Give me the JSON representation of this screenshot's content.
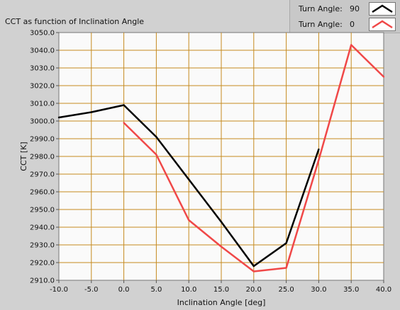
{
  "chart_data": {
    "type": "line",
    "title": "CCT as function of Inclination Angle",
    "xlabel": "Inclination Angle [deg]",
    "ylabel": "CCT [K]",
    "xlim": [
      -10,
      40
    ],
    "ylim": [
      2910,
      3050
    ],
    "xticks": [
      "-10.0",
      "-5.0",
      "0.0",
      "5.0",
      "10.0",
      "15.0",
      "20.0",
      "25.0",
      "30.0",
      "35.0",
      "40.0"
    ],
    "yticks": [
      "2910.0",
      "2920.0",
      "2930.0",
      "2940.0",
      "2950.0",
      "2960.0",
      "2970.0",
      "2980.0",
      "2990.0",
      "3000.0",
      "3010.0",
      "3020.0",
      "3030.0",
      "3040.0",
      "3050.0"
    ],
    "grid": true,
    "legend_position": "top-right",
    "series": [
      {
        "legend_label": "Turn Angle:",
        "name": "90",
        "color": "#000000",
        "x": [
          -10,
          -5,
          0,
          5,
          10,
          15,
          20,
          25,
          30
        ],
        "y": [
          3002,
          3005,
          3009,
          2991,
          2967,
          2943,
          2918,
          2931,
          2984
        ]
      },
      {
        "legend_label": "Turn Angle:",
        "name": "0",
        "color": "#f04848",
        "x": [
          0,
          5,
          10,
          15,
          20,
          25,
          30,
          35,
          40
        ],
        "y": [
          2999,
          2981,
          2944,
          2929,
          2915,
          2917,
          2978,
          3043,
          3025
        ]
      }
    ]
  }
}
